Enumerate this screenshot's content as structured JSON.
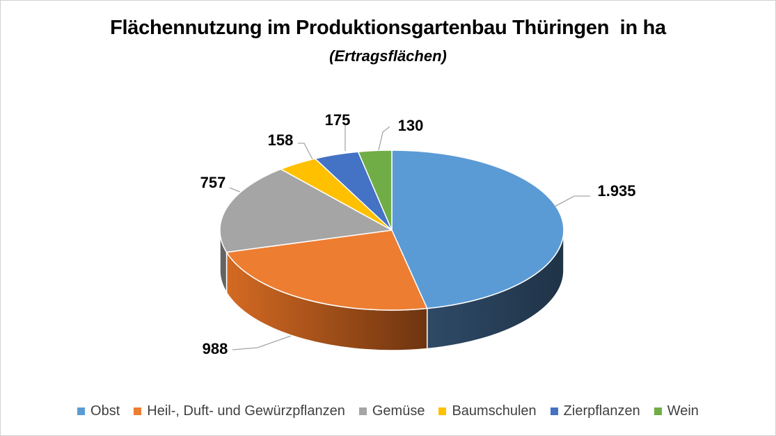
{
  "chart_data": {
    "type": "pie",
    "title": "Flächennutzung im Produktionsgartenbau Thüringen  in ha",
    "subtitle": "(Ertragsflächen)",
    "unit": "ha",
    "legend_position": "bottom",
    "slices": [
      {
        "name": "Obst",
        "value": 1935,
        "label": "1.935",
        "color": "#5b9bd5"
      },
      {
        "name": "Heil-, Duft- und Gewürzpflanzen",
        "value": 988,
        "label": "988",
        "color": "#ed7d31"
      },
      {
        "name": "Gemüse",
        "value": 757,
        "label": "757",
        "color": "#a5a5a5"
      },
      {
        "name": "Baumschulen",
        "value": 158,
        "label": "158",
        "color": "#ffc000"
      },
      {
        "name": "Zierpflanzen",
        "value": 175,
        "label": "175",
        "color": "#4472c4"
      },
      {
        "name": "Wein",
        "value": 130,
        "label": "130",
        "color": "#70ad47"
      }
    ]
  }
}
